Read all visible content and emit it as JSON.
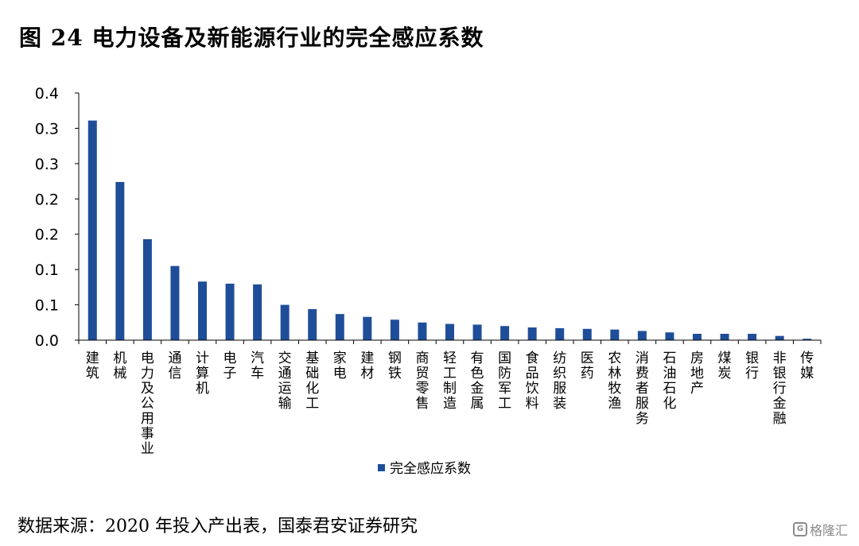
{
  "figure": {
    "title": "图 24 电力设备及新能源行业的完全感应系数",
    "source": "数据来源：2020 年投入产出表，国泰君安证券研究",
    "watermark": "格隆汇",
    "watermark_logo": "G"
  },
  "colors": {
    "bar": "#1f4e99",
    "axis": "#000000"
  },
  "chart_data": {
    "type": "bar",
    "title": "",
    "xlabel": "",
    "ylabel": "",
    "ylim": [
      0,
      0.35
    ],
    "y_ticks": [
      0,
      0.05,
      0.1,
      0.15,
      0.2,
      0.25,
      0.3,
      0.35
    ],
    "y_tick_labels": [
      "0.0",
      "0.1",
      "0.1",
      "0.2",
      "0.2",
      "0.3",
      "0.3",
      "0.4"
    ],
    "grid": false,
    "legend": {
      "position": "bottom-center"
    },
    "categories": [
      "建筑",
      "机械",
      "电力及公用事业",
      "通信",
      "计算机",
      "电子",
      "汽车",
      "交通运输",
      "基础化工",
      "家电",
      "建材",
      "钢铁",
      "商贸零售",
      "轻工制造",
      "有色金属",
      "国防军工",
      "食品饮料",
      "纺织服装",
      "医药",
      "农林牧渔",
      "消费者服务",
      "石油石化",
      "房地产",
      "煤炭",
      "银行",
      "非银行金融",
      "传媒"
    ],
    "series": [
      {
        "name": "完全感应系数",
        "values": [
          0.311,
          0.224,
          0.143,
          0.105,
          0.083,
          0.08,
          0.079,
          0.05,
          0.044,
          0.037,
          0.033,
          0.029,
          0.025,
          0.023,
          0.022,
          0.02,
          0.018,
          0.017,
          0.016,
          0.015,
          0.013,
          0.011,
          0.009,
          0.009,
          0.009,
          0.006,
          0.002
        ]
      }
    ]
  }
}
